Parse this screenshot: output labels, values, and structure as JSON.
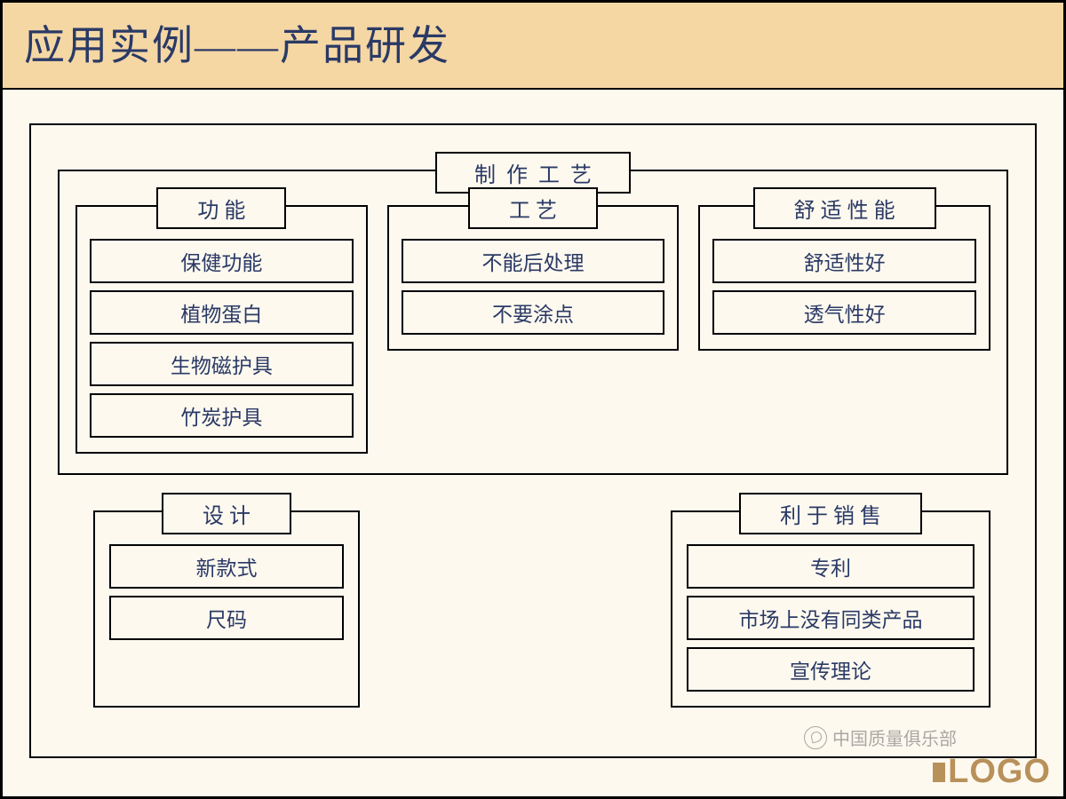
{
  "slide": {
    "title": "应用实例——产品研发",
    "title_color": "#2a3a66",
    "header_bg": "#f5d7a4",
    "body_bg": "#fef9ef",
    "border_color": "#000000",
    "text_color": "#2a3a66",
    "title_fontsize": 46,
    "label_fontsize": 24,
    "item_fontsize": 23
  },
  "diagram": {
    "type": "tree",
    "outer_label": "制作工艺",
    "top_groups": [
      {
        "label": "功能",
        "items": [
          "保健功能",
          "植物蛋白",
          "生物磁护具",
          "竹炭护具"
        ]
      },
      {
        "label": "工艺",
        "items": [
          "不能后处理",
          "不要涂点"
        ]
      },
      {
        "label": "舒适性能",
        "items": [
          "舒适性好",
          "透气性好"
        ]
      }
    ],
    "bottom_groups": [
      {
        "label": "设计",
        "items": [
          "新款式",
          "尺码"
        ]
      },
      {
        "label": "利于销售",
        "items": [
          "专利",
          "市场上没有同类产品",
          "宣传理论"
        ]
      }
    ]
  },
  "footer": {
    "logo_text": "LOGO",
    "logo_color": "#b8915a",
    "watermark": "中国质量俱乐部"
  }
}
